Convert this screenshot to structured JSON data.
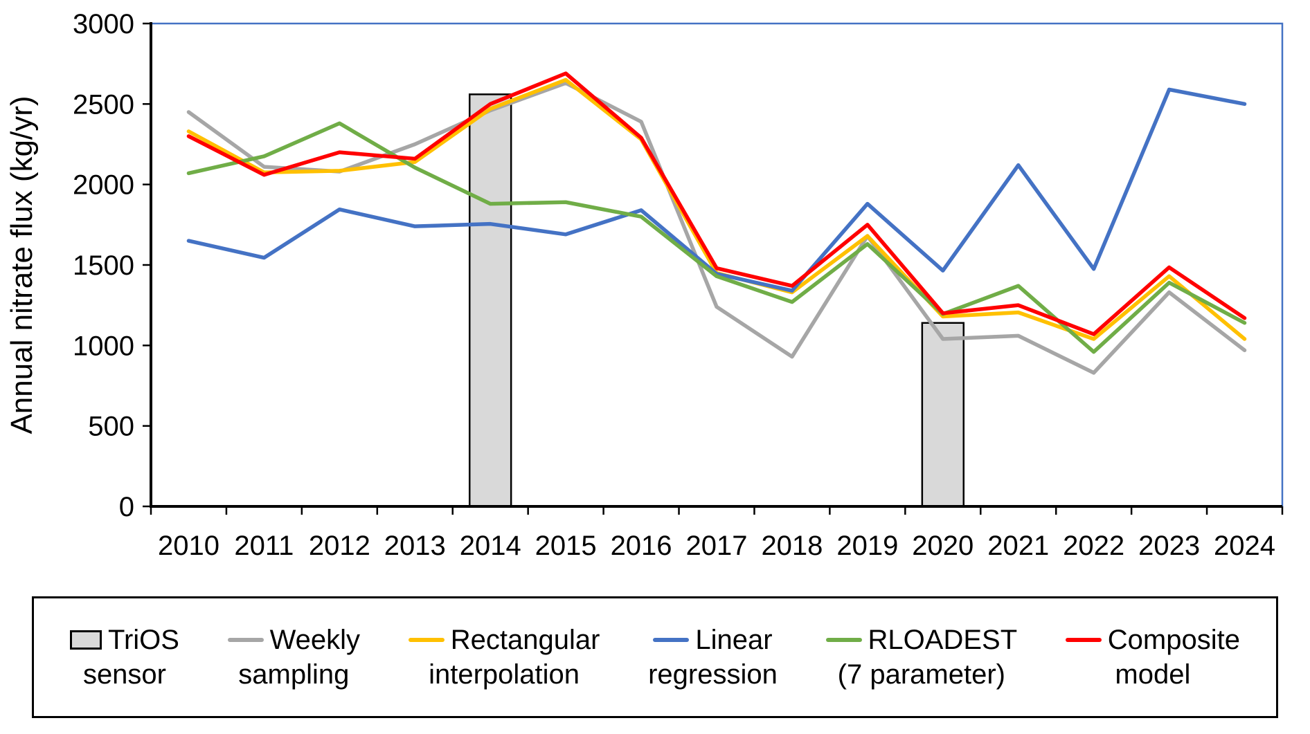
{
  "chart_data": {
    "type": "combo-bar-line",
    "title": "",
    "xlabel": "",
    "ylabel": "Annual nitrate flux (kg/yr)",
    "ylim": [
      0,
      3000
    ],
    "ytick_step": 500,
    "grid": false,
    "legend_position": "bottom",
    "colors": {
      "background": "#FFFFFF",
      "axis": "#000000",
      "plot_border": "#4472C4"
    },
    "categories": [
      "2010",
      "2011",
      "2012",
      "2013",
      "2014",
      "2015",
      "2016",
      "2017",
      "2018",
      "2019",
      "2020",
      "2021",
      "2022",
      "2023",
      "2024"
    ],
    "series": [
      {
        "name": "TriOS sensor",
        "legend_lines": [
          "TriOS",
          "sensor"
        ],
        "type": "bar",
        "color": "#D9D9D9",
        "border": "#000000",
        "values": [
          null,
          null,
          null,
          null,
          2560,
          null,
          null,
          null,
          null,
          null,
          1140,
          null,
          null,
          null,
          null
        ]
      },
      {
        "name": "Weekly sampling",
        "legend_lines": [
          "Weekly",
          "sampling"
        ],
        "type": "line",
        "color": "#A6A6A6",
        "values": [
          2450,
          2110,
          2080,
          2250,
          2460,
          2630,
          2390,
          1240,
          930,
          1680,
          1040,
          1060,
          830,
          1330,
          970
        ]
      },
      {
        "name": "Rectangular interpolation",
        "legend_lines": [
          "Rectangular",
          "interpolation"
        ],
        "type": "line",
        "color": "#FFC000",
        "values": [
          2330,
          2075,
          2085,
          2140,
          2470,
          2650,
          2280,
          1450,
          1330,
          1680,
          1180,
          1205,
          1040,
          1430,
          1040
        ]
      },
      {
        "name": "Linear regression",
        "legend_lines": [
          "Linear",
          "regression"
        ],
        "type": "line",
        "color": "#4472C4",
        "values": [
          1650,
          1545,
          1845,
          1740,
          1755,
          1690,
          1840,
          1445,
          1340,
          1880,
          1465,
          2120,
          1475,
          2590,
          2500
        ]
      },
      {
        "name": "RLOADEST (7 parameter)",
        "legend_lines": [
          "RLOADEST",
          "(7 parameter)"
        ],
        "type": "line",
        "color": "#70AD47",
        "values": [
          2070,
          2175,
          2380,
          2105,
          1880,
          1890,
          1800,
          1430,
          1270,
          1630,
          1195,
          1370,
          960,
          1390,
          1140
        ]
      },
      {
        "name": "Composite model",
        "legend_lines": [
          "Composite",
          "model"
        ],
        "type": "line",
        "color": "#FF0000",
        "values": [
          2300,
          2060,
          2200,
          2160,
          2500,
          2690,
          2290,
          1480,
          1370,
          1750,
          1200,
          1250,
          1070,
          1485,
          1170
        ]
      }
    ]
  }
}
